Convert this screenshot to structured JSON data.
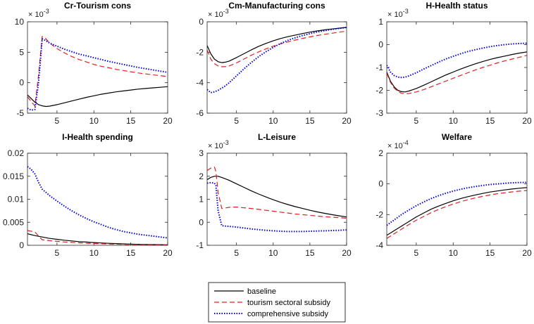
{
  "chart_data": [
    {
      "type": "line",
      "title": "Cr-Tourism cons",
      "exponent": "× 10^-3",
      "exponent_base": "× 10",
      "exponent_power": "-3",
      "xlim": [
        1,
        20
      ],
      "ylim": [
        -5,
        10
      ],
      "xticks": [
        "5",
        "10",
        "15",
        "20"
      ],
      "xtick_values": [
        5,
        10,
        15,
        20
      ],
      "yticks": [
        "10",
        "5",
        "0",
        "-5"
      ],
      "ytick_values": [
        10,
        5,
        0,
        -5
      ],
      "series": [
        {
          "name": "baseline",
          "x": [
            1,
            1.5,
            2,
            2.5,
            3,
            3.5,
            4,
            5,
            6,
            7,
            8,
            9,
            10,
            11,
            12,
            13,
            14,
            15,
            16,
            17,
            18,
            19,
            20
          ],
          "y": [
            -2,
            -2.6,
            -3.2,
            -3.6,
            -3.8,
            -3.9,
            -3.85,
            -3.6,
            -3.3,
            -3.0,
            -2.7,
            -2.4,
            -2.15,
            -1.9,
            -1.7,
            -1.5,
            -1.35,
            -1.2,
            -1.05,
            -0.95,
            -0.85,
            -0.75,
            -0.65
          ]
        },
        {
          "name": "tourism sectoral subsidy",
          "x": [
            1,
            1.5,
            2,
            2.5,
            3,
            3.5,
            4,
            5,
            6,
            7,
            8,
            9,
            10,
            11,
            12,
            13,
            14,
            15,
            16,
            17,
            18,
            19,
            20
          ],
          "y": [
            -2.3,
            -3.1,
            -3.8,
            1.2,
            7.6,
            7.2,
            6.5,
            5.6,
            4.9,
            4.3,
            3.8,
            3.4,
            3.0,
            2.7,
            2.45,
            2.2,
            2.0,
            1.8,
            1.6,
            1.45,
            1.3,
            1.15,
            1.0
          ]
        },
        {
          "name": "comprehensive subsidy",
          "x": [
            1,
            1.5,
            2,
            2.5,
            3,
            3.5,
            4,
            5,
            6,
            7,
            8,
            9,
            10,
            11,
            12,
            13,
            14,
            15,
            16,
            17,
            18,
            19,
            20
          ],
          "y": [
            -4.2,
            -4.5,
            -4.4,
            0,
            7.2,
            6.9,
            6.5,
            6.0,
            5.5,
            5.1,
            4.7,
            4.4,
            4.1,
            3.8,
            3.5,
            3.25,
            3.0,
            2.75,
            2.5,
            2.3,
            2.1,
            1.9,
            1.7
          ]
        }
      ]
    },
    {
      "type": "line",
      "title": "Cm-Manufacturing cons",
      "exponent": "× 10^-3",
      "exponent_base": "× 10",
      "exponent_power": "-3",
      "xlim": [
        1,
        20
      ],
      "ylim": [
        -6,
        0
      ],
      "xticks": [
        "5",
        "10",
        "15",
        "20"
      ],
      "xtick_values": [
        5,
        10,
        15,
        20
      ],
      "yticks": [
        "0",
        "-2",
        "-4",
        "-6"
      ],
      "ytick_values": [
        0,
        -2,
        -4,
        -6
      ],
      "series": [
        {
          "name": "baseline",
          "x": [
            1,
            1.5,
            2,
            2.5,
            3,
            3.5,
            4,
            5,
            6,
            7,
            8,
            9,
            10,
            11,
            12,
            13,
            14,
            15,
            16,
            17,
            18,
            19,
            20
          ],
          "y": [
            -1.55,
            -2.1,
            -2.45,
            -2.62,
            -2.68,
            -2.65,
            -2.58,
            -2.35,
            -2.1,
            -1.85,
            -1.62,
            -1.42,
            -1.25,
            -1.1,
            -0.98,
            -0.87,
            -0.77,
            -0.68,
            -0.6,
            -0.53,
            -0.47,
            -0.42,
            -0.37
          ]
        },
        {
          "name": "tourism sectoral subsidy",
          "x": [
            1,
            1.5,
            2,
            2.5,
            3,
            3.5,
            4,
            5,
            6,
            7,
            8,
            9,
            10,
            11,
            12,
            13,
            14,
            15,
            16,
            17,
            18,
            19,
            20
          ],
          "y": [
            -1.85,
            -2.45,
            -2.75,
            -2.9,
            -2.95,
            -2.95,
            -2.9,
            -2.7,
            -2.45,
            -2.2,
            -1.98,
            -1.78,
            -1.6,
            -1.45,
            -1.32,
            -1.2,
            -1.09,
            -0.99,
            -0.9,
            -0.82,
            -0.75,
            -0.68,
            -0.62
          ]
        },
        {
          "name": "comprehensive subsidy",
          "x": [
            1,
            1.5,
            2,
            2.5,
            3,
            3.5,
            4,
            5,
            6,
            7,
            8,
            9,
            10,
            11,
            12,
            13,
            14,
            15,
            16,
            17,
            18,
            19,
            20
          ],
          "y": [
            -4.45,
            -4.65,
            -4.6,
            -4.5,
            -4.35,
            -4.2,
            -4.0,
            -3.55,
            -3.1,
            -2.68,
            -2.3,
            -1.97,
            -1.68,
            -1.43,
            -1.22,
            -1.05,
            -0.9,
            -0.78,
            -0.67,
            -0.58,
            -0.5,
            -0.43,
            -0.37
          ]
        }
      ]
    },
    {
      "type": "line",
      "title": "H-Health status",
      "exponent": "× 10^-3",
      "exponent_base": "× 10",
      "exponent_power": "-3",
      "xlim": [
        1,
        20
      ],
      "ylim": [
        -3,
        1
      ],
      "xticks": [
        "5",
        "10",
        "15",
        "20"
      ],
      "xtick_values": [
        5,
        10,
        15,
        20
      ],
      "yticks": [
        "1",
        "0",
        "-1",
        "-2",
        "-3"
      ],
      "ytick_values": [
        1,
        0,
        -1,
        -2,
        -3
      ],
      "series": [
        {
          "name": "baseline",
          "x": [
            1,
            1.5,
            2,
            2.5,
            3,
            3.5,
            4,
            5,
            6,
            7,
            8,
            9,
            10,
            11,
            12,
            13,
            14,
            15,
            16,
            17,
            18,
            19,
            20
          ],
          "y": [
            -1.2,
            -1.6,
            -1.85,
            -2.0,
            -2.06,
            -2.07,
            -2.03,
            -1.92,
            -1.78,
            -1.63,
            -1.48,
            -1.33,
            -1.2,
            -1.07,
            -0.95,
            -0.84,
            -0.74,
            -0.65,
            -0.57,
            -0.5,
            -0.43,
            -0.37,
            -0.32
          ]
        },
        {
          "name": "tourism sectoral subsidy",
          "x": [
            1,
            1.5,
            2,
            2.5,
            3,
            3.5,
            4,
            5,
            6,
            7,
            8,
            9,
            10,
            11,
            12,
            13,
            14,
            15,
            16,
            17,
            18,
            19,
            20
          ],
          "y": [
            -1.25,
            -1.65,
            -1.9,
            -2.05,
            -2.13,
            -2.15,
            -2.14,
            -2.07,
            -1.97,
            -1.85,
            -1.72,
            -1.6,
            -1.47,
            -1.35,
            -1.23,
            -1.11,
            -1.0,
            -0.9,
            -0.8,
            -0.71,
            -0.63,
            -0.55,
            -0.47
          ]
        },
        {
          "name": "comprehensive subsidy",
          "x": [
            1,
            1.5,
            2,
            2.5,
            3,
            3.5,
            4,
            5,
            6,
            7,
            8,
            9,
            10,
            11,
            12,
            13,
            14,
            15,
            16,
            17,
            18,
            19,
            20
          ],
          "y": [
            -0.9,
            -1.2,
            -1.35,
            -1.42,
            -1.44,
            -1.42,
            -1.37,
            -1.23,
            -1.07,
            -0.92,
            -0.77,
            -0.63,
            -0.51,
            -0.4,
            -0.3,
            -0.22,
            -0.15,
            -0.09,
            -0.04,
            0.0,
            0.03,
            0.05,
            0.06
          ]
        }
      ]
    },
    {
      "type": "line",
      "title": "I-Health spending",
      "exponent": "",
      "xlim": [
        1,
        20
      ],
      "ylim": [
        0,
        0.02
      ],
      "xticks": [
        "5",
        "10",
        "15",
        "20"
      ],
      "xtick_values": [
        5,
        10,
        15,
        20
      ],
      "yticks": [
        "0.02",
        "0.015",
        "0.01",
        "0.005",
        "0"
      ],
      "ytick_values": [
        0.02,
        0.015,
        0.01,
        0.005,
        0
      ],
      "series": [
        {
          "name": "baseline",
          "x": [
            1,
            2,
            3,
            4,
            5,
            6,
            7,
            8,
            9,
            10,
            11,
            12,
            13,
            14,
            15,
            16,
            17,
            18,
            19,
            20
          ],
          "y": [
            0.0025,
            0.0021,
            0.0018,
            0.0015,
            0.0013,
            0.0011,
            0.00095,
            0.0008,
            0.0007,
            0.0006,
            0.0005,
            0.00043,
            0.00037,
            0.00031,
            0.00026,
            0.00022,
            0.00019,
            0.00016,
            0.00013,
            0.00011
          ]
        },
        {
          "name": "tourism sectoral subsidy",
          "x": [
            1,
            2,
            2.5,
            3,
            4,
            5,
            6,
            7,
            8,
            9,
            10,
            11,
            12,
            13,
            14,
            15,
            16,
            17,
            18,
            19,
            20
          ],
          "y": [
            0.0032,
            0.0029,
            0.002,
            0.0012,
            0.001,
            0.00085,
            0.00072,
            0.00062,
            0.00053,
            0.00045,
            0.00039,
            0.00033,
            0.00028,
            0.00024,
            0.0002,
            0.00017,
            0.00014,
            0.00012,
            0.0001,
            8e-05,
            6e-05
          ]
        },
        {
          "name": "comprehensive subsidy",
          "x": [
            1,
            1.5,
            2,
            2.5,
            3,
            4,
            5,
            6,
            7,
            8,
            9,
            10,
            11,
            12,
            13,
            14,
            15,
            16,
            17,
            18,
            19,
            20
          ],
          "y": [
            0.0171,
            0.0165,
            0.0155,
            0.0137,
            0.0122,
            0.0108,
            0.0096,
            0.0085,
            0.0075,
            0.0066,
            0.0058,
            0.0051,
            0.0045,
            0.0039,
            0.0034,
            0.003,
            0.0027,
            0.0024,
            0.0022,
            0.002,
            0.0018,
            0.0016
          ]
        }
      ]
    },
    {
      "type": "line",
      "title": "L-Leisure",
      "exponent": "× 10^-3",
      "exponent_base": "× 10",
      "exponent_power": "-3",
      "xlim": [
        1,
        20
      ],
      "ylim": [
        -1,
        3
      ],
      "xticks": [
        "5",
        "10",
        "15",
        "20"
      ],
      "xtick_values": [
        5,
        10,
        15,
        20
      ],
      "yticks": [
        "3",
        "2",
        "1",
        "0",
        "-1"
      ],
      "ytick_values": [
        3,
        2,
        1,
        0,
        -1
      ],
      "series": [
        {
          "name": "baseline",
          "x": [
            1,
            1.5,
            2,
            2.5,
            3,
            4,
            5,
            6,
            7,
            8,
            9,
            10,
            11,
            12,
            13,
            14,
            15,
            16,
            17,
            18,
            19,
            20
          ],
          "y": [
            1.85,
            1.95,
            2.0,
            2.0,
            1.95,
            1.82,
            1.67,
            1.52,
            1.37,
            1.23,
            1.1,
            0.98,
            0.87,
            0.77,
            0.68,
            0.6,
            0.52,
            0.45,
            0.39,
            0.33,
            0.28,
            0.23
          ]
        },
        {
          "name": "tourism sectoral subsidy",
          "x": [
            1,
            1.5,
            2,
            2.2,
            2.5,
            3,
            4,
            5,
            6,
            7,
            8,
            9,
            10,
            11,
            12,
            13,
            14,
            15,
            16,
            17,
            18,
            19,
            20
          ],
          "y": [
            2.25,
            2.35,
            2.4,
            2.2,
            1.3,
            0.6,
            0.65,
            0.66,
            0.63,
            0.6,
            0.56,
            0.52,
            0.48,
            0.44,
            0.4,
            0.36,
            0.33,
            0.3,
            0.27,
            0.24,
            0.22,
            0.2,
            0.18
          ]
        },
        {
          "name": "comprehensive subsidy",
          "x": [
            1,
            1.5,
            2,
            2.2,
            2.5,
            3,
            4,
            5,
            6,
            7,
            8,
            9,
            10,
            11,
            12,
            13,
            14,
            15,
            16,
            17,
            18,
            19,
            20
          ],
          "y": [
            1.7,
            1.72,
            1.7,
            1.6,
            0.5,
            -0.15,
            -0.18,
            -0.21,
            -0.25,
            -0.29,
            -0.32,
            -0.35,
            -0.37,
            -0.39,
            -0.4,
            -0.4,
            -0.4,
            -0.39,
            -0.38,
            -0.37,
            -0.36,
            -0.35,
            -0.33
          ]
        }
      ]
    },
    {
      "type": "line",
      "title": "Welfare",
      "exponent": "× 10^-4",
      "exponent_base": "× 10",
      "exponent_power": "-4",
      "xlim": [
        1,
        20
      ],
      "ylim": [
        -4,
        2
      ],
      "xticks": [
        "5",
        "10",
        "15",
        "20"
      ],
      "xtick_values": [
        5,
        10,
        15,
        20
      ],
      "yticks": [
        "2",
        "0",
        "-2",
        "-4"
      ],
      "ytick_values": [
        2,
        0,
        -2,
        -4
      ],
      "series": [
        {
          "name": "baseline",
          "x": [
            1,
            2,
            3,
            4,
            5,
            6,
            7,
            8,
            9,
            10,
            11,
            12,
            13,
            14,
            15,
            16,
            17,
            18,
            19,
            20
          ],
          "y": [
            -3.35,
            -3.05,
            -2.75,
            -2.45,
            -2.15,
            -1.9,
            -1.65,
            -1.45,
            -1.27,
            -1.1,
            -0.96,
            -0.83,
            -0.72,
            -0.62,
            -0.53,
            -0.46,
            -0.39,
            -0.33,
            -0.28,
            -0.24
          ]
        },
        {
          "name": "tourism sectoral subsidy",
          "x": [
            1,
            2,
            3,
            4,
            5,
            6,
            7,
            8,
            9,
            10,
            11,
            12,
            13,
            14,
            15,
            16,
            17,
            18,
            19,
            20
          ],
          "y": [
            -3.55,
            -3.25,
            -2.95,
            -2.65,
            -2.37,
            -2.12,
            -1.88,
            -1.67,
            -1.48,
            -1.31,
            -1.16,
            -1.03,
            -0.91,
            -0.81,
            -0.72,
            -0.64,
            -0.58,
            -0.52,
            -0.47,
            -0.43
          ]
        },
        {
          "name": "comprehensive subsidy",
          "x": [
            1,
            2,
            3,
            4,
            5,
            6,
            7,
            8,
            9,
            10,
            11,
            12,
            13,
            14,
            15,
            16,
            17,
            18,
            19,
            20
          ],
          "y": [
            -2.7,
            -2.35,
            -2.0,
            -1.7,
            -1.42,
            -1.18,
            -0.96,
            -0.77,
            -0.61,
            -0.47,
            -0.35,
            -0.25,
            -0.17,
            -0.1,
            -0.04,
            0.0,
            0.04,
            0.07,
            0.09,
            0.1
          ]
        }
      ]
    }
  ],
  "legend": {
    "position": "bottom-center",
    "entries": [
      {
        "label": "baseline",
        "color": "#000000",
        "style": "solid"
      },
      {
        "label": "tourism sectoral subsidy",
        "color": "#e02020",
        "style": "dashed"
      },
      {
        "label": "comprehensive subsidy",
        "color": "#0000e6",
        "style": "dotted"
      }
    ]
  }
}
